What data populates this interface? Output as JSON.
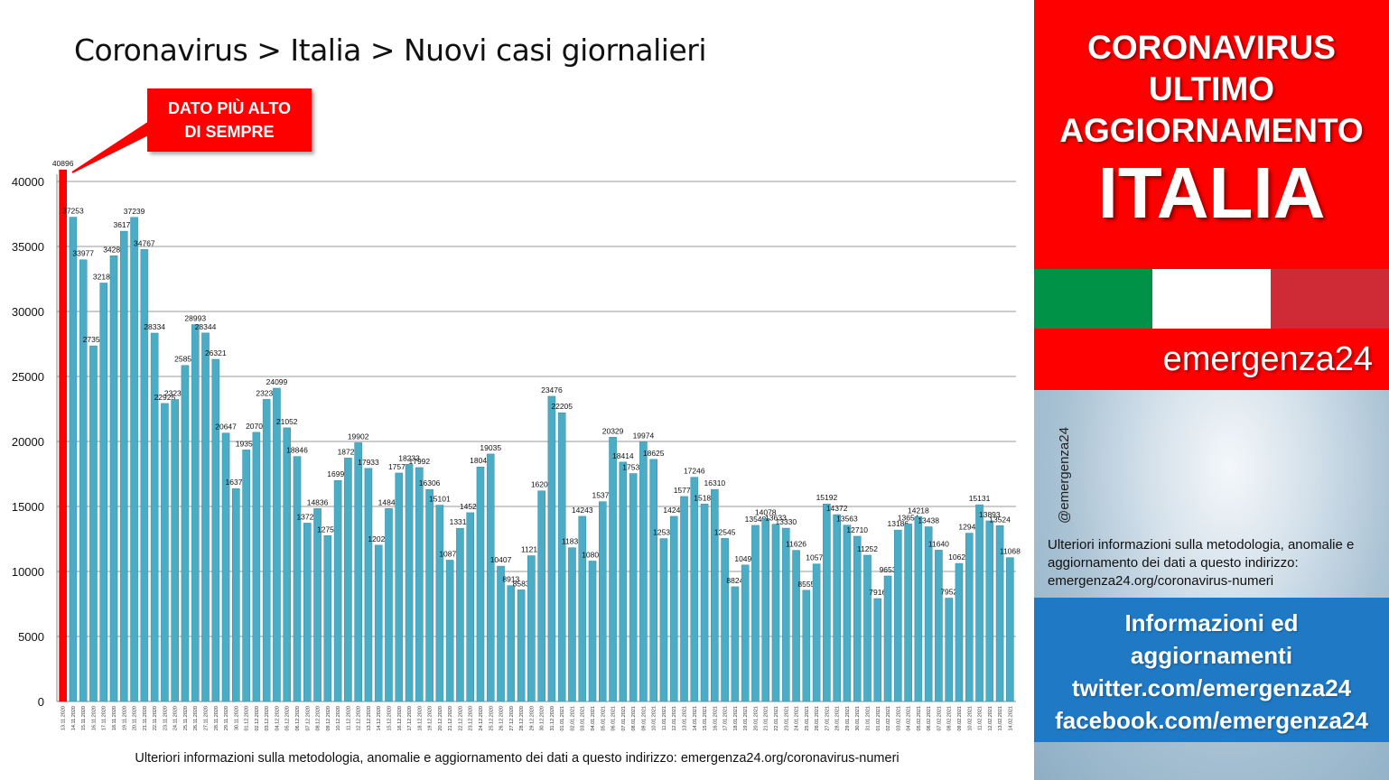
{
  "chart_title": "Coronavirus > Italia > Nuovi casi giornalieri",
  "callout": {
    "line1": "DATO PIÙ ALTO",
    "line2": "DI SEMPRE"
  },
  "footer_text": "Ulteriori informazioni sulla metodologia, anomalie e aggiornamento dei dati a questo indirizzo: emergenza24.org/coronavirus-numeri",
  "side": {
    "header_line1": "CORONAVIRUS",
    "header_line2": "ULTIMO",
    "header_line3": "AGGIORNAMENTO",
    "header_big": "ITALIA",
    "brand": "emergenza24",
    "handle": "@emergenza24",
    "info": "Ulteriori informazioni sulla metodologia, anomalie e aggiornamento dei dati a questo indirizzo: emergenza24.org/coronavirus-numeri",
    "blue_line1": "Informazioni ed",
    "blue_line2": "aggiornamenti",
    "blue_line3": "twitter.com/emergenza24",
    "blue_line4": "facebook.com/emergenza24"
  },
  "colors": {
    "bar": "#4bacc6",
    "highlight_bar": "#ff0000",
    "header_red": "#ff0000",
    "flag_green": "#009246",
    "flag_white": "#ffffff",
    "flag_red": "#ce2b37",
    "blue_box": "#1f79c4"
  },
  "chart_data": {
    "type": "bar",
    "title": "Coronavirus > Italia > Nuovi casi giornalieri",
    "xlabel": "",
    "ylabel": "",
    "ylim": [
      0,
      40000
    ],
    "yticks": [
      0,
      5000,
      10000,
      15000,
      20000,
      25000,
      30000,
      35000,
      40000
    ],
    "grid": true,
    "highlight_index": 0,
    "categories": [
      "13.11.2020",
      "14.11.2020",
      "15.11.2020",
      "16.11.2020",
      "17.11.2020",
      "18.11.2020",
      "19.11.2020",
      "20.11.2020",
      "21.11.2020",
      "22.11.2020",
      "23.11.2020",
      "24.11.2020",
      "25.11.2020",
      "26.11.2020",
      "27.11.2020",
      "28.11.2020",
      "29.11.2020",
      "30.11.2020",
      "01.12.2020",
      "02.12.2020",
      "03.12.2020",
      "04.12.2020",
      "05.12.2020",
      "06.12.2020",
      "07.12.2020",
      "08.12.2020",
      "09.12.2020",
      "10.12.2020",
      "11.12.2020",
      "12.12.2020",
      "13.12.2020",
      "14.12.2020",
      "15.12.2020",
      "16.12.2020",
      "17.12.2020",
      "18.12.2020",
      "19.12.2020",
      "20.12.2020",
      "21.12.2020",
      "22.12.2020",
      "23.12.2020",
      "24.12.2020",
      "25.12.2020",
      "26.12.2020",
      "27.12.2020",
      "28.12.2020",
      "29.12.2020",
      "30.12.2020",
      "31.12.2020",
      "01.01.2021",
      "02.01.2021",
      "03.01.2021",
      "04.01.2021",
      "05.01.2021",
      "06.01.2021",
      "07.01.2021",
      "08.01.2021",
      "09.01.2021",
      "10.01.2021",
      "11.01.2021",
      "12.01.2021",
      "13.01.2021",
      "14.01.2021",
      "15.01.2021",
      "16.01.2021",
      "17.01.2021",
      "18.01.2021",
      "19.01.2021",
      "20.01.2021",
      "21.01.2021",
      "22.01.2021",
      "23.01.2021",
      "24.01.2021",
      "25.01.2021",
      "26.01.2021",
      "27.01.2021",
      "28.01.2021",
      "29.01.2021",
      "30.01.2021",
      "31.01.2021",
      "01.02.2021",
      "02.02.2021",
      "03.02.2021",
      "04.02.2021",
      "05.02.2021",
      "06.02.2021",
      "07.02.2021",
      "08.02.2021",
      "09.02.2021",
      "10.02.2021",
      "11.02.2021",
      "12.02.2021",
      "13.02.2021",
      "14.02.2021"
    ],
    "values": [
      40896,
      37253,
      33977,
      27354,
      32188,
      34283,
      36173,
      37239,
      34767,
      28334,
      22925,
      23231,
      25851,
      28993,
      28344,
      26321,
      20647,
      16374,
      19350,
      20703,
      23236,
      24099,
      21052,
      18846,
      13720,
      14836,
      12755,
      16998,
      18726,
      19902,
      17933,
      12025,
      14840,
      17572,
      18233,
      17992,
      16306,
      15101,
      10870,
      13318,
      14522,
      18040,
      19035,
      10407,
      8913,
      8583,
      11212,
      16202,
      23476,
      22205,
      11831,
      14243,
      10800,
      15370,
      20329,
      18414,
      17533,
      19974,
      18625,
      12532,
      14241,
      15771,
      17246,
      15187,
      16310,
      12545,
      8824,
      10497,
      13548,
      14078,
      13633,
      13330,
      11626,
      8555,
      10578,
      15192,
      14372,
      13563,
      12710,
      11252,
      7916,
      9653,
      13186,
      13654,
      14218,
      13438,
      11640,
      7952,
      10621,
      12947,
      15131,
      13893,
      13524,
      11068
    ]
  }
}
